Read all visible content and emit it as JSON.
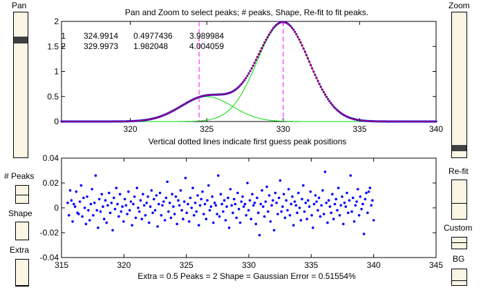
{
  "controls": {
    "pan_label": "Pan",
    "zoom_label": "Zoom",
    "npeaks_label": "# Peaks",
    "shape_label": "Shape",
    "extra_label": "Extra",
    "refit_label": "Re-fit",
    "custom_label": "Custom",
    "bg_label": "BG"
  },
  "top_plot": {
    "title": "Pan and Zoom to select peaks; # peaks, Shape, Re-fit to fit peaks.",
    "xlabel": "Vertical dotted lines indicate first guess peak positions",
    "table": [
      {
        "index": "1",
        "position": "324.9914",
        "height": "0.4977436",
        "width": "3.989984"
      },
      {
        "index": "2",
        "position": "329.9973",
        "height": "1.982048",
        "width": "4.004059"
      }
    ]
  },
  "bottom_plot": {
    "xlabel": "Extra = 0.5     Peaks = 2     Shape = Gaussian   Error = 0.51554%"
  },
  "chart_data": [
    {
      "type": "line",
      "title": "Pan and Zoom to select peaks; # peaks, Shape, Re-fit to fit peaks.",
      "xlabel": "Vertical dotted lines indicate first guess peak positions",
      "ylabel": "",
      "xlim": [
        315.5,
        340
      ],
      "ylim": [
        0,
        2
      ],
      "xticks": [
        320,
        325,
        330,
        335,
        340
      ],
      "yticks": [
        0,
        0.5,
        1,
        1.5,
        2
      ],
      "grid": false,
      "colors": {
        "data": "#0000ff",
        "fit": "#ff0000",
        "components": "#00dd00",
        "guess_lines": "#ff00ff"
      },
      "peaks": [
        {
          "position": 324.9914,
          "height": 0.4977436,
          "width": 3.989984
        },
        {
          "position": 329.9973,
          "height": 1.982048,
          "width": 4.004059
        }
      ],
      "first_guess_positions": [
        324.5,
        330
      ]
    },
    {
      "type": "scatter",
      "xlabel": "Extra = 0.5     Peaks = 2     Shape = Gaussian   Error = 0.51554%",
      "ylabel": "",
      "xlim": [
        315,
        345
      ],
      "ylim": [
        -0.04,
        0.04
      ],
      "xticks": [
        315,
        320,
        325,
        330,
        335,
        340,
        345
      ],
      "yticks": [
        -0.04,
        -0.02,
        0,
        0.02,
        0.04
      ],
      "grid": false,
      "colors": {
        "points": "#0000ff"
      },
      "series": [
        {
          "x_start": 315.5,
          "x_end": 340,
          "values": [
            0.004,
            -0.006,
            0.014,
            0.006,
            -0.011,
            0.003,
            0.001,
            0.013,
            -0.004,
            -0.005,
            0.005,
            0.018,
            -0.007,
            0.008,
            0.0,
            -0.013,
            0.009,
            -0.002,
            -0.01,
            0.003,
            0.015,
            -0.006,
            0.004,
            0.026,
            -0.002,
            -0.016,
            0.007,
            -0.003,
            0.011,
            0.001,
            -0.009,
            0.006,
            -0.012,
            0.002,
            0.012,
            -0.004,
            0.004,
            -0.018,
            0.008,
            -0.001,
            0.016,
            0.003,
            -0.007,
            0.011,
            -0.003,
            0.001,
            -0.011,
            0.007,
            0.002,
            -0.005,
            0.013,
            -0.002,
            0.005,
            -0.014,
            0.003,
            0.009,
            -0.008,
            0.016,
            0.0,
            -0.003,
            0.006,
            -0.009,
            0.011,
            0.002,
            -0.006,
            0.004,
            0.009,
            -0.012,
            0.001,
            0.014,
            -0.004,
            0.007,
            -0.002,
            0.01,
            -0.015,
            0.003,
            0.012,
            -0.006,
            0.002,
            0.005,
            -0.01,
            0.008,
            0.021,
            -0.003,
            0.004,
            -0.008,
            0.011,
            0.001,
            -0.005,
            0.009,
            -0.013,
            0.006,
            0.002,
            0.014,
            -0.002,
            -0.009,
            0.005,
            0.024,
            -0.004,
            0.003,
            -0.011,
            0.008,
            0.0,
            0.016,
            -0.006,
            0.004,
            -0.003,
            0.01,
            -0.014,
            0.002,
            0.007,
            0.013,
            -0.005,
            0.003,
            -0.009,
            0.006,
            0.018,
            -0.002,
            0.001,
            0.009,
            -0.012,
            0.004,
            0.002,
            -0.005,
            0.026,
            -0.007,
            0.011,
            0.003,
            -0.003,
            0.006,
            -0.01,
            0.001,
            0.008,
            -0.016,
            0.015,
            0.002,
            -0.004,
            0.007,
            0.003,
            -0.008,
            0.012,
            -0.001,
            -0.012,
            0.005,
            0.009,
            0.001,
            0.003,
            -0.006,
            0.02,
            -0.002,
            0.006,
            -0.009,
            0.011,
            0.002,
            0.004,
            -0.013,
            0.008,
            -0.004,
            -0.022,
            0.003,
            0.014,
            0.001,
            -0.007,
            0.005,
            0.017,
            -0.003,
            0.01,
            -0.011,
            0.002,
            0.006,
            -0.018,
            0.012,
            0.004,
            -0.005,
            0.008,
            0.022,
            -0.003,
            0.001,
            0.011,
            -0.008,
            0.006,
            -0.002,
            0.015,
            -0.006,
            0.003,
            0.009,
            -0.014,
            0.005,
            0.002,
            -0.004,
            0.012,
            0.0,
            -0.01,
            0.007,
            0.018,
            -0.003,
            0.004,
            -0.009,
            0.006,
            0.001,
            0.013,
            -0.006,
            -0.016,
            0.003,
            0.01,
            0.005,
            -0.002,
            0.008,
            -0.007,
            0.002,
            0.014,
            -0.005,
            0.029,
            0.004,
            -0.012,
            0.006,
            0.001,
            -0.004,
            0.011,
            -0.009,
            0.003,
            0.007,
            -0.002,
            0.016,
            -0.006,
            0.002,
            0.009,
            -0.013,
            0.004,
            0.001,
            0.012,
            -0.004,
            0.006,
            0.026,
            -0.003,
            0.008,
            -0.011,
            0.002,
            0.005,
            0.015,
            -0.006,
            0.009,
            -0.001,
            0.003,
            -0.021,
            0.007,
            0.012,
            -0.004,
            0.013,
            0.016,
            0.002,
            0.006,
            -0.01
          ]
        }
      ]
    }
  ]
}
